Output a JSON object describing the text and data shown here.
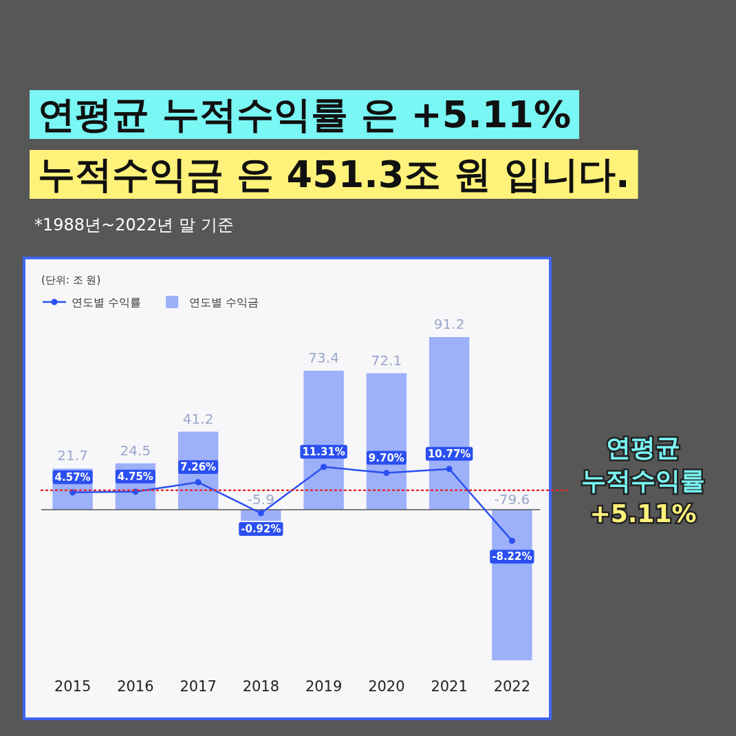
{
  "chart_data": {
    "type": "bar",
    "title": "연평균 누적수익률 은 +5.11%",
    "subtitle": "누적수익금 은 451.3조 원 입니다.",
    "annotations": [
      "*1988년~2022년 말 기준",
      "(단위: 조 원)"
    ],
    "categories": [
      "2015",
      "2016",
      "2017",
      "2018",
      "2019",
      "2020",
      "2021",
      "2022"
    ],
    "series": [
      {
        "name": "연도별 수익률",
        "type": "line",
        "axis": "y2",
        "color": "#2b4ff0",
        "values": [
          4.57,
          4.75,
          7.26,
          -0.92,
          11.31,
          9.7,
          10.77,
          -8.22
        ],
        "value_labels": [
          "4.57%",
          "4.75%",
          "7.26%",
          "-0.92%",
          "11.31%",
          "9.70%",
          "10.77%",
          "-8.22%"
        ]
      },
      {
        "name": "연도별 수익금",
        "color": "#9db0fa",
        "values": [
          21.7,
          24.5,
          41.2,
          -5.9,
          73.4,
          72.1,
          91.2,
          -79.6
        ],
        "value_labels": [
          "21.7",
          "24.5",
          "41.2",
          "-5.9",
          "73.4",
          "72.1",
          "91.2",
          "-79.6"
        ]
      }
    ],
    "ref_lines": [
      {
        "axis": "y2",
        "value": 5.11,
        "label": "연평균 누적수익률 +5.11%",
        "color": "#e8262b",
        "line_style": "dotted"
      }
    ],
    "legend": "top left",
    "marker": "circle"
  }
}
